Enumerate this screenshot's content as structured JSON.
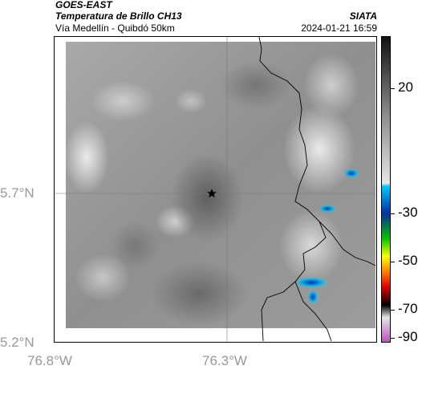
{
  "header": {
    "satellite": "GOES-EAST",
    "product": "Temperatura de Brillo CH13",
    "region": "Vía Medellín - Quibdó 50km",
    "agency": "SIATA",
    "datetime": "2024-01-21 16:59"
  },
  "axes": {
    "y_ticks": [
      "5.7°N",
      "5.2°N"
    ],
    "x_ticks": [
      "76.8°W",
      "76.3°W"
    ]
  },
  "colorbar": {
    "ticks": [
      "20",
      "-30",
      "-50",
      "-70",
      "-90"
    ],
    "colors": {
      "top": "#111111",
      "gray_mid": "#8a8a8a",
      "gray_light": "#e6e6e6",
      "cyan": "#00c8ff",
      "blue": "#0030a0",
      "green": "#00c000",
      "yellow": "#ffff00",
      "orange": "#ff8000",
      "red": "#e00000",
      "black": "#000000",
      "magenta": "#c050c0"
    }
  },
  "map": {
    "marker": "star-icon"
  }
}
